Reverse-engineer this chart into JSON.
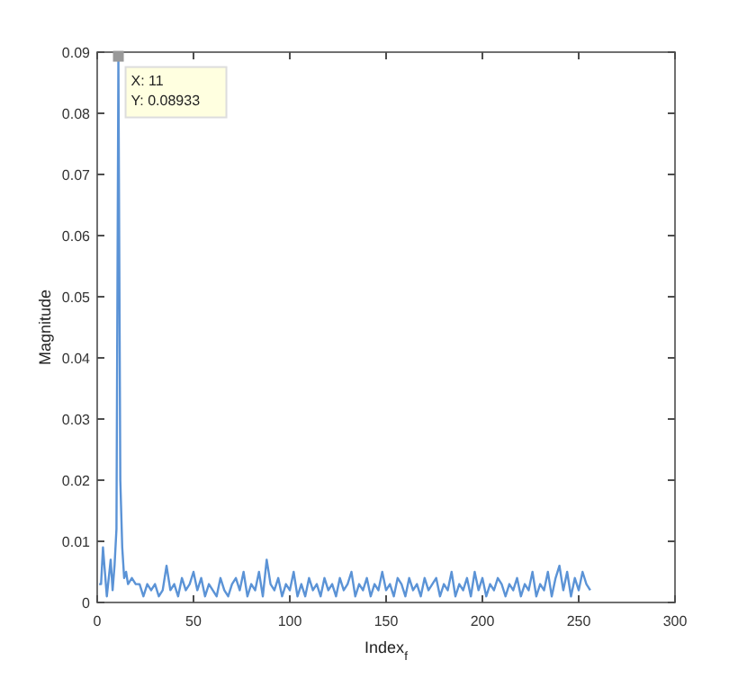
{
  "chart_data": {
    "type": "line",
    "xlabel": "Index$_{f}$",
    "ylabel": "Magnitude",
    "xlim": [
      0,
      300
    ],
    "xticks": [
      0,
      50,
      100,
      150,
      200,
      250,
      300
    ],
    "ylim": [
      0,
      0.09
    ],
    "yticks": [
      0,
      0.01,
      0.02,
      0.03,
      0.04,
      0.05,
      0.06,
      0.07,
      0.08,
      0.09
    ],
    "grid": false,
    "marker": "none",
    "line_style": "solid",
    "series": [
      {
        "color": "#5b93d6",
        "x": [
          1,
          2,
          3,
          4,
          5,
          6,
          7,
          8,
          9,
          10,
          11,
          12,
          13,
          14,
          15,
          16,
          18,
          20,
          22,
          24,
          26,
          28,
          30,
          32,
          34,
          36,
          38,
          40,
          42,
          44,
          46,
          48,
          50,
          52,
          54,
          56,
          58,
          60,
          62,
          64,
          66,
          68,
          70,
          72,
          74,
          76,
          78,
          80,
          82,
          84,
          86,
          88,
          90,
          92,
          94,
          96,
          98,
          100,
          102,
          104,
          106,
          108,
          110,
          112,
          114,
          116,
          118,
          120,
          122,
          124,
          126,
          128,
          130,
          132,
          134,
          136,
          138,
          140,
          142,
          144,
          146,
          148,
          150,
          152,
          154,
          156,
          158,
          160,
          162,
          164,
          166,
          168,
          170,
          172,
          174,
          176,
          178,
          180,
          182,
          184,
          186,
          188,
          190,
          192,
          194,
          196,
          198,
          200,
          202,
          204,
          206,
          208,
          210,
          212,
          214,
          216,
          218,
          220,
          222,
          224,
          226,
          228,
          230,
          232,
          234,
          236,
          238,
          240,
          242,
          244,
          246,
          248,
          250,
          252,
          254,
          256
        ],
        "values": [
          0.003,
          0.003,
          0.009,
          0.005,
          0.001,
          0.004,
          0.007,
          0.002,
          0.006,
          0.012,
          0.08933,
          0.02,
          0.009,
          0.004,
          0.005,
          0.003,
          0.004,
          0.003,
          0.003,
          0.001,
          0.003,
          0.002,
          0.003,
          0.001,
          0.002,
          0.006,
          0.002,
          0.003,
          0.001,
          0.004,
          0.002,
          0.003,
          0.005,
          0.002,
          0.004,
          0.001,
          0.003,
          0.002,
          0.001,
          0.004,
          0.002,
          0.001,
          0.003,
          0.004,
          0.002,
          0.005,
          0.001,
          0.003,
          0.002,
          0.005,
          0.001,
          0.007,
          0.003,
          0.002,
          0.004,
          0.001,
          0.003,
          0.002,
          0.005,
          0.001,
          0.003,
          0.001,
          0.004,
          0.002,
          0.003,
          0.001,
          0.004,
          0.002,
          0.003,
          0.001,
          0.004,
          0.002,
          0.003,
          0.005,
          0.001,
          0.003,
          0.002,
          0.004,
          0.001,
          0.003,
          0.002,
          0.005,
          0.002,
          0.003,
          0.001,
          0.004,
          0.003,
          0.001,
          0.004,
          0.002,
          0.003,
          0.001,
          0.004,
          0.002,
          0.003,
          0.004,
          0.001,
          0.003,
          0.002,
          0.005,
          0.001,
          0.003,
          0.002,
          0.004,
          0.001,
          0.005,
          0.002,
          0.004,
          0.001,
          0.003,
          0.002,
          0.004,
          0.003,
          0.001,
          0.003,
          0.002,
          0.004,
          0.001,
          0.003,
          0.002,
          0.005,
          0.001,
          0.003,
          0.002,
          0.005,
          0.001,
          0.004,
          0.006,
          0.002,
          0.005,
          0.001,
          0.004,
          0.002,
          0.005,
          0.003,
          0.002
        ]
      }
    ],
    "annotations": [
      {
        "text": "X: 11\nY: 0.08933",
        "x": 11,
        "y": 0.08933
      }
    ]
  }
}
